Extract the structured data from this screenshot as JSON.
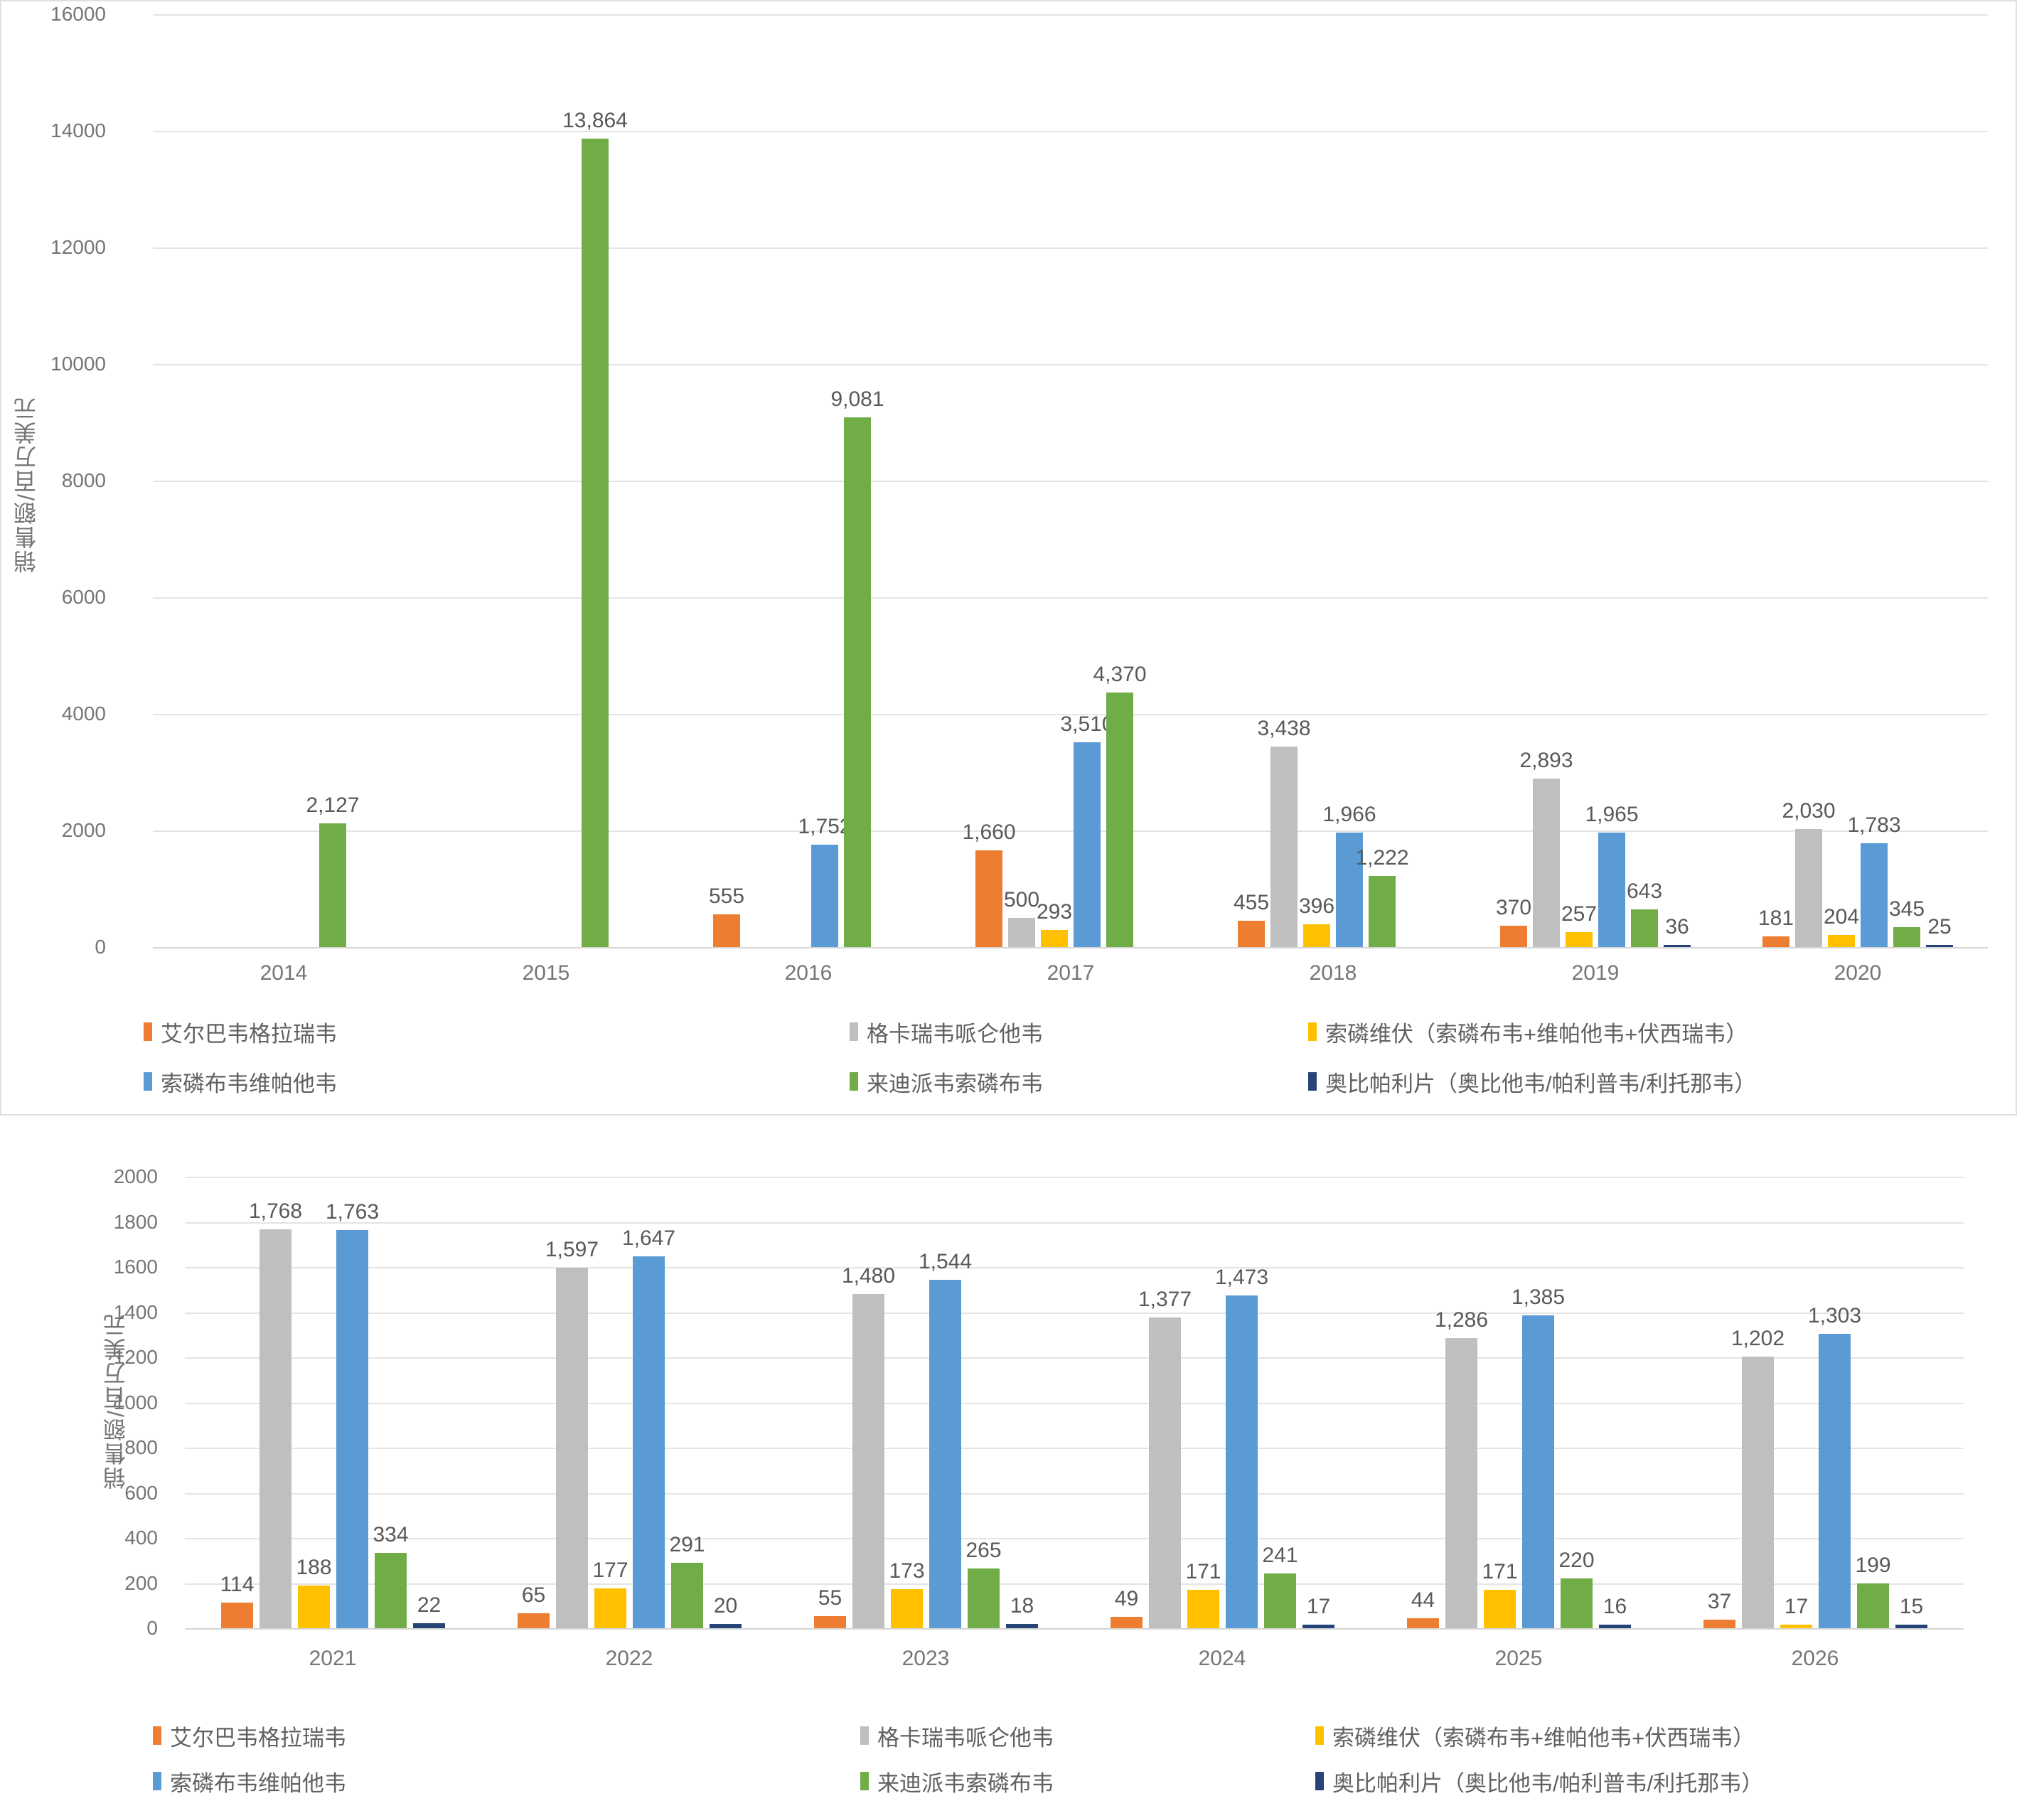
{
  "chart_data": [
    {
      "type": "bar",
      "title": "",
      "axis_title": "销售额/百万美元",
      "ylabel": "销售额/百万美元",
      "xlabel": "",
      "ylim": [
        0,
        16000
      ],
      "ytick": 2000,
      "grid": true,
      "legend_position": "bottom",
      "categories": [
        "2014",
        "2015",
        "2016",
        "2017",
        "2018",
        "2019",
        "2020"
      ],
      "series": [
        {
          "name": "艾尔巴韦格拉瑞韦",
          "color": "#ED7D31",
          "values": [
            null,
            null,
            555,
            1660,
            455,
            370,
            181
          ]
        },
        {
          "name": "格卡瑞韦哌仑他韦",
          "color": "#BFBFBF",
          "values": [
            null,
            null,
            null,
            500,
            3438,
            2893,
            2030
          ]
        },
        {
          "name": "索磷维伏（索磷布韦+维帕他韦+伏西瑞韦）",
          "color": "#FFC000",
          "values": [
            null,
            null,
            null,
            293,
            396,
            257,
            204
          ]
        },
        {
          "name": "索磷布韦维帕他韦",
          "color": "#5B9BD5",
          "values": [
            null,
            null,
            1752,
            3510,
            1966,
            1965,
            1783
          ]
        },
        {
          "name": "来迪派韦索磷布韦",
          "color": "#70AD47",
          "values": [
            2127,
            13864,
            9081,
            4370,
            1222,
            643,
            345
          ]
        },
        {
          "name": "奥比帕利片（奥比他韦/帕利普韦/利托那韦）",
          "color": "#264478",
          "values": [
            null,
            null,
            null,
            null,
            null,
            36,
            25
          ]
        }
      ]
    },
    {
      "type": "bar",
      "title": "",
      "axis_title": "销售额/百万美元",
      "ylabel": "销售额/百万美元",
      "xlabel": "",
      "ylim": [
        0,
        2000
      ],
      "ytick": 200,
      "grid": true,
      "legend_position": "bottom",
      "categories": [
        "2021",
        "2022",
        "2023",
        "2024",
        "2025",
        "2026"
      ],
      "series": [
        {
          "name": "艾尔巴韦格拉瑞韦",
          "color": "#ED7D31",
          "values": [
            114,
            65,
            55,
            49,
            44,
            37
          ]
        },
        {
          "name": "格卡瑞韦哌仑他韦",
          "color": "#BFBFBF",
          "values": [
            1768,
            1597,
            1480,
            1377,
            1286,
            1202
          ]
        },
        {
          "name": "索磷维伏（索磷布韦+维帕他韦+伏西瑞韦）",
          "color": "#FFC000",
          "values": [
            188,
            177,
            173,
            171,
            171,
            17
          ]
        },
        {
          "name": "索磷布韦维帕他韦",
          "color": "#5B9BD5",
          "values": [
            1763,
            1647,
            1544,
            1473,
            1385,
            1303
          ]
        },
        {
          "name": "来迪派韦索磷布韦",
          "color": "#70AD47",
          "values": [
            334,
            291,
            265,
            241,
            220,
            199
          ]
        },
        {
          "name": "奥比帕利片（奥比他韦/帕利普韦/利托那韦）",
          "color": "#264478",
          "values": [
            22,
            20,
            18,
            17,
            16,
            15
          ]
        }
      ]
    }
  ]
}
